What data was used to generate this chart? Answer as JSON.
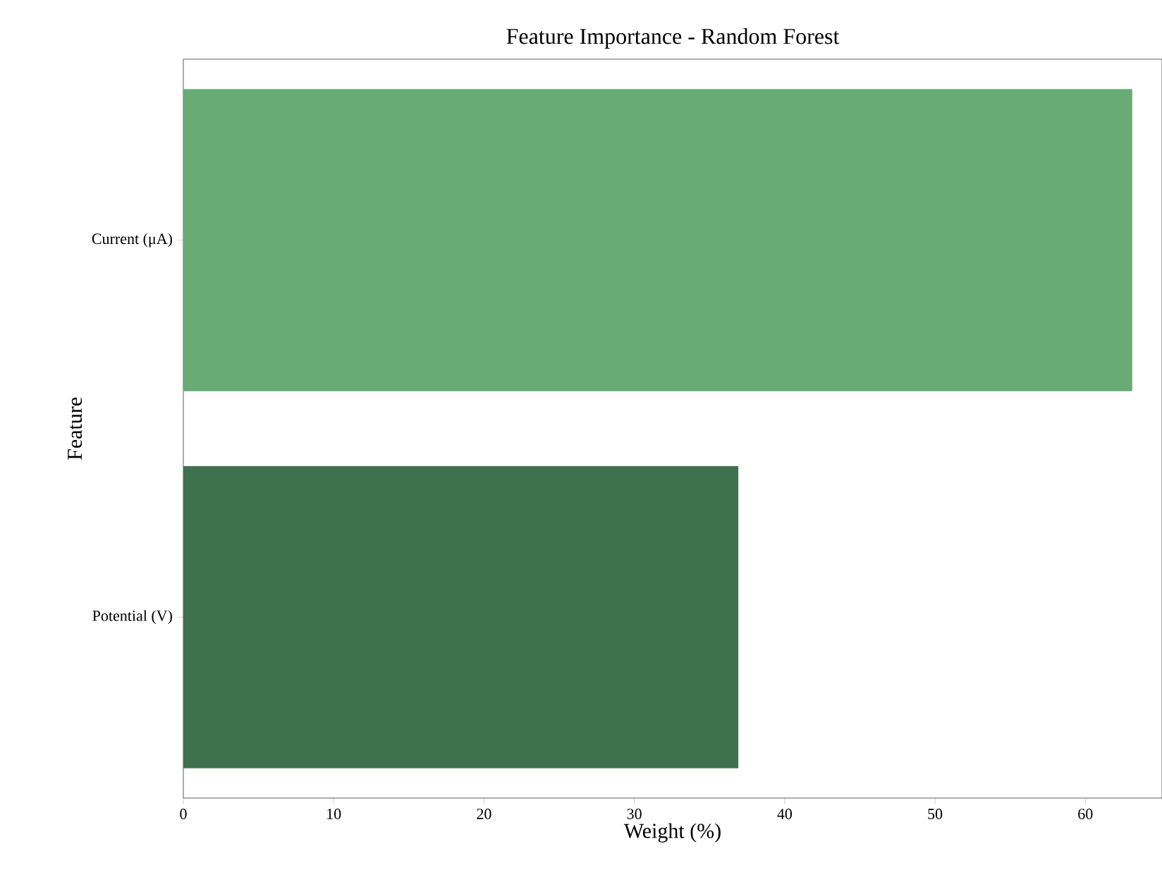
{
  "chart_data": {
    "type": "bar",
    "orientation": "horizontal",
    "title": "Feature Importance - Random Forest",
    "xlabel": "Weight (%)",
    "ylabel": "Feature",
    "categories": [
      "Current (μA)",
      "Potential (V)"
    ],
    "values": [
      63.1,
      36.9
    ],
    "colors": [
      "#68ab75",
      "#3e704d"
    ],
    "xlim": [
      0,
      65.1
    ],
    "xticks": [
      0,
      10,
      20,
      30,
      40,
      50,
      60
    ]
  }
}
